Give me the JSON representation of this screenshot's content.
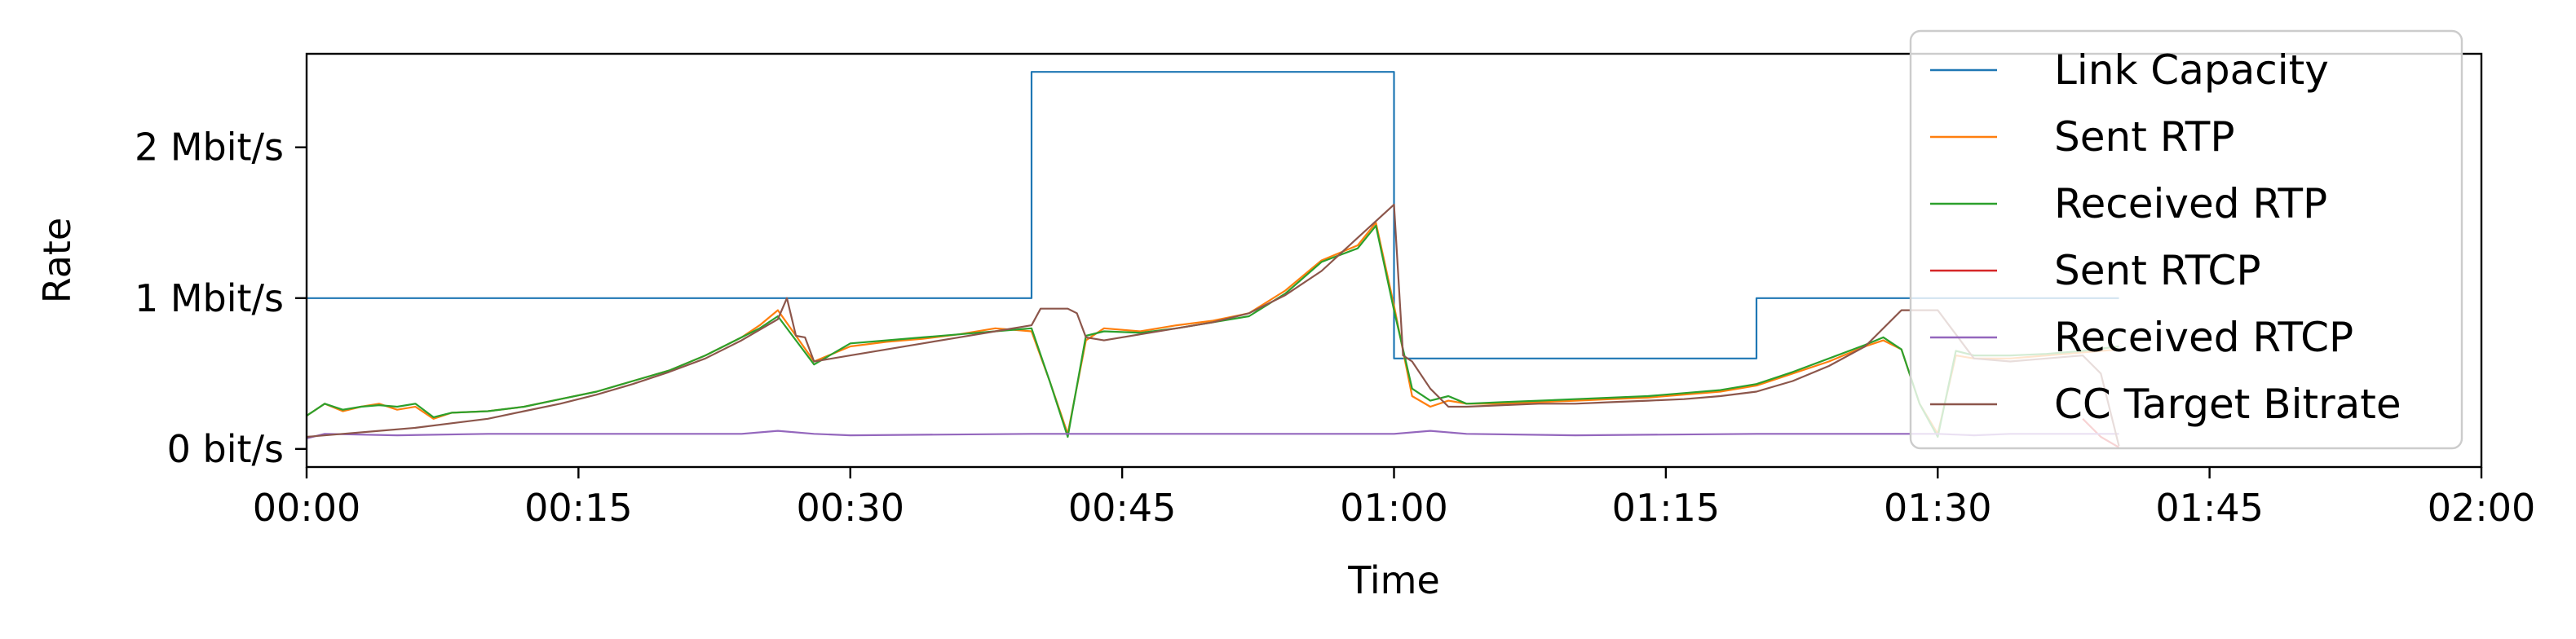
{
  "chart_data": {
    "type": "line",
    "title": "",
    "xlabel": "Time",
    "ylabel": "Rate",
    "x_unit": "seconds",
    "xlim": [
      0,
      120
    ],
    "ylim": [
      -0.12,
      2.62
    ],
    "x_ticks": [
      0,
      15,
      30,
      45,
      60,
      75,
      90,
      105,
      120
    ],
    "x_tick_labels": [
      "00:00",
      "00:15",
      "00:30",
      "00:45",
      "01:00",
      "01:15",
      "01:30",
      "01:45",
      "02:00"
    ],
    "y_ticks": [
      0,
      1,
      2
    ],
    "y_tick_labels": [
      "0 bit/s",
      "1 Mbit/s",
      "2 Mbit/s"
    ],
    "grid": false,
    "legend_position": "top-right",
    "series": [
      {
        "name": "Link Capacity",
        "color": "#1f77b4",
        "x": [
          0,
          40,
          40,
          60,
          60,
          80,
          80,
          100
        ],
        "y": [
          1.0,
          1.0,
          2.5,
          2.5,
          0.6,
          0.6,
          1.0,
          1.0
        ]
      },
      {
        "name": "Sent RTP",
        "color": "#ff7f0e",
        "x": [
          0,
          1,
          2,
          3,
          4,
          5,
          6,
          7,
          8,
          10,
          12,
          14,
          16,
          18,
          20,
          22,
          24,
          25,
          26,
          27,
          28,
          30,
          32,
          34,
          36,
          38,
          40,
          41,
          42,
          43,
          44,
          46,
          48,
          50,
          52,
          54,
          56,
          58,
          59,
          60,
          61,
          62,
          63,
          64,
          66,
          68,
          70,
          72,
          74,
          76,
          78,
          80,
          82,
          84,
          86,
          87,
          88,
          89,
          90,
          91,
          92,
          94,
          96,
          98,
          100
        ],
        "y": [
          0.22,
          0.3,
          0.25,
          0.28,
          0.3,
          0.26,
          0.28,
          0.2,
          0.24,
          0.25,
          0.28,
          0.33,
          0.38,
          0.45,
          0.52,
          0.62,
          0.74,
          0.82,
          0.92,
          0.75,
          0.58,
          0.68,
          0.71,
          0.73,
          0.76,
          0.8,
          0.78,
          0.45,
          0.1,
          0.72,
          0.8,
          0.78,
          0.82,
          0.85,
          0.9,
          1.05,
          1.25,
          1.35,
          1.5,
          0.95,
          0.35,
          0.28,
          0.32,
          0.3,
          0.3,
          0.31,
          0.32,
          0.33,
          0.34,
          0.36,
          0.38,
          0.42,
          0.5,
          0.58,
          0.68,
          0.72,
          0.66,
          0.3,
          0.1,
          0.62,
          0.6,
          0.6,
          0.62,
          0.64,
          0.66
        ]
      },
      {
        "name": "Received RTP",
        "color": "#2ca02c",
        "x": [
          0,
          1,
          2,
          3,
          4,
          5,
          6,
          7,
          8,
          10,
          12,
          14,
          16,
          18,
          20,
          22,
          24,
          25,
          26,
          27,
          28,
          30,
          32,
          34,
          36,
          38,
          40,
          41,
          42,
          43,
          44,
          46,
          48,
          50,
          52,
          54,
          56,
          58,
          59,
          60,
          61,
          62,
          63,
          64,
          66,
          68,
          70,
          72,
          74,
          76,
          78,
          80,
          82,
          84,
          86,
          87,
          88,
          89,
          90,
          91,
          92,
          94,
          96,
          98,
          100
        ],
        "y": [
          0.22,
          0.3,
          0.26,
          0.28,
          0.29,
          0.28,
          0.3,
          0.21,
          0.24,
          0.25,
          0.28,
          0.33,
          0.38,
          0.45,
          0.52,
          0.62,
          0.74,
          0.8,
          0.88,
          0.72,
          0.56,
          0.7,
          0.72,
          0.74,
          0.76,
          0.78,
          0.8,
          0.45,
          0.08,
          0.75,
          0.78,
          0.77,
          0.8,
          0.84,
          0.88,
          1.03,
          1.24,
          1.33,
          1.48,
          0.92,
          0.4,
          0.32,
          0.35,
          0.3,
          0.31,
          0.32,
          0.33,
          0.34,
          0.35,
          0.37,
          0.39,
          0.43,
          0.51,
          0.6,
          0.69,
          0.74,
          0.66,
          0.3,
          0.08,
          0.65,
          0.62,
          0.62,
          0.63,
          0.65,
          0.68
        ]
      },
      {
        "name": "Sent RTCP",
        "color": "#d62728",
        "x": [
          98,
          99,
          100
        ],
        "y": [
          0.2,
          0.08,
          0.01
        ]
      },
      {
        "name": "Received RTCP",
        "color": "#9467bd",
        "x": [
          0,
          1,
          5,
          10,
          20,
          24,
          26,
          28,
          30,
          40,
          50,
          60,
          62,
          64,
          70,
          80,
          90,
          92,
          94,
          100
        ],
        "y": [
          0.07,
          0.1,
          0.09,
          0.1,
          0.1,
          0.1,
          0.12,
          0.1,
          0.09,
          0.1,
          0.1,
          0.1,
          0.12,
          0.1,
          0.09,
          0.1,
          0.1,
          0.09,
          0.1,
          0.1
        ]
      },
      {
        "name": "CC Target Bitrate",
        "color": "#8c564b",
        "x": [
          0,
          2,
          4,
          6,
          8,
          10,
          12,
          14,
          16,
          18,
          20,
          22,
          24,
          26,
          26.5,
          27,
          27.5,
          28,
          30,
          32,
          34,
          36,
          38,
          40,
          40.5,
          42,
          42.5,
          43,
          44,
          46,
          48,
          50,
          52,
          54,
          56,
          58,
          60,
          60.5,
          61,
          62,
          63,
          64,
          66,
          68,
          70,
          72,
          74,
          76,
          78,
          80,
          82,
          84,
          86,
          88,
          90,
          92,
          94,
          96,
          98,
          99,
          100
        ],
        "y": [
          0.08,
          0.1,
          0.12,
          0.14,
          0.17,
          0.2,
          0.25,
          0.3,
          0.36,
          0.43,
          0.51,
          0.6,
          0.72,
          0.86,
          1.0,
          0.75,
          0.74,
          0.58,
          0.62,
          0.66,
          0.7,
          0.74,
          0.78,
          0.82,
          0.93,
          0.93,
          0.9,
          0.74,
          0.72,
          0.76,
          0.8,
          0.84,
          0.9,
          1.02,
          1.18,
          1.4,
          1.62,
          0.62,
          0.58,
          0.4,
          0.28,
          0.28,
          0.29,
          0.3,
          0.3,
          0.31,
          0.32,
          0.33,
          0.35,
          0.38,
          0.45,
          0.55,
          0.68,
          0.92,
          0.92,
          0.6,
          0.58,
          0.6,
          0.62,
          0.5,
          0.02
        ]
      }
    ]
  }
}
